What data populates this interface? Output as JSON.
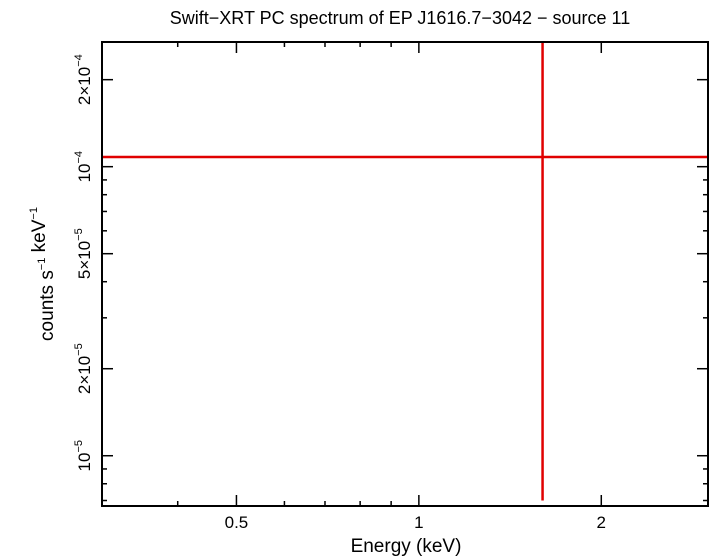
{
  "chart_data": {
    "type": "scatter",
    "title": "Swift−XRT PC spectrum of EP J1616.7−3042 − source 11",
    "xlabel": "Energy (keV)",
    "ylabel": "counts s⁻¹ keV⁻¹",
    "x_scale": "log",
    "y_scale": "log",
    "xlim": [
      0.3,
      3.0
    ],
    "ylim": [
      6.7e-06,
      0.00027
    ],
    "x_ticks": [
      {
        "value": 0.5,
        "label": "0.5"
      },
      {
        "value": 1,
        "label": "1"
      },
      {
        "value": 2,
        "label": "2"
      }
    ],
    "y_ticks": [
      {
        "value": 1e-05,
        "label": "10⁻⁵"
      },
      {
        "value": 2e-05,
        "label": "2×10⁻⁵"
      },
      {
        "value": 5e-05,
        "label": "5×10⁻⁵"
      },
      {
        "value": 0.0001,
        "label": "10⁻⁴"
      },
      {
        "value": 0.0002,
        "label": "2×10⁻⁴"
      }
    ],
    "series": [
      {
        "color": "#e00000",
        "points": [
          {
            "x": 1.6,
            "y": 0.000108,
            "xerr": [
              1.3,
              1.4
            ],
            "yerr": [
              0.000101,
              1.0
            ]
          }
        ]
      }
    ],
    "grid": false
  }
}
